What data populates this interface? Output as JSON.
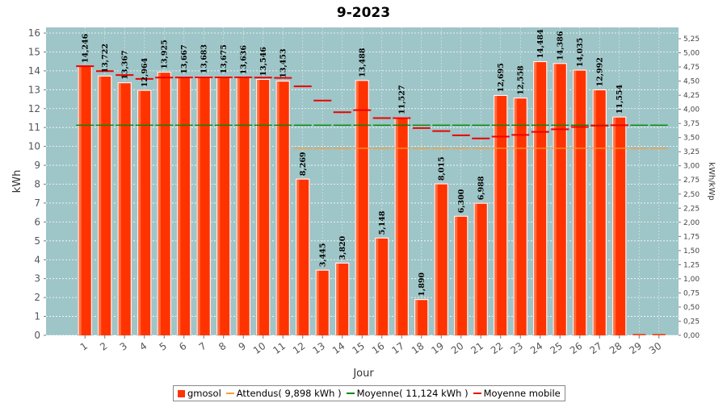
{
  "chart_data": {
    "type": "bar",
    "title": "9-2023",
    "xlabel": "Jour",
    "ylabel": "kWh",
    "ylabel_right": "kWh/kWp",
    "ylim": [
      0,
      16.3
    ],
    "ylim_right": [
      0,
      5.45
    ],
    "y_ticks": [
      0,
      1,
      2,
      3,
      4,
      5,
      6,
      7,
      8,
      9,
      10,
      11,
      12,
      13,
      14,
      15,
      16
    ],
    "y_ticks_right": [
      "0,00",
      "0,25",
      "0,50",
      "0,75",
      "1,00",
      "1,25",
      "1,50",
      "1,75",
      "2,00",
      "2,25",
      "2,50",
      "2,75",
      "3,00",
      "3,25",
      "3,50",
      "3,75",
      "4,00",
      "4,25",
      "4,50",
      "4,75",
      "5,00",
      "5,25"
    ],
    "categories": [
      "1",
      "2",
      "3",
      "4",
      "5",
      "6",
      "7",
      "8",
      "9",
      "10",
      "11",
      "12",
      "13",
      "14",
      "15",
      "16",
      "17",
      "18",
      "19",
      "20",
      "21",
      "22",
      "23",
      "24",
      "25",
      "26",
      "27",
      "28",
      "29",
      "30"
    ],
    "series": [
      {
        "name": "gmosol",
        "values": [
          14.246,
          13.722,
          13.367,
          12.964,
          13.925,
          13.667,
          13.683,
          13.675,
          13.636,
          13.546,
          13.453,
          8.269,
          3.445,
          3.82,
          13.488,
          5.148,
          11.527,
          1.89,
          8.015,
          6.3,
          6.988,
          12.695,
          12.558,
          14.484,
          14.386,
          14.035,
          12.992,
          11.554,
          0,
          0
        ],
        "labels": [
          "14,246",
          "13,722",
          "13,367",
          "12,964",
          "13,925",
          "13,667",
          "13,683",
          "13,675",
          "13,636",
          "13,546",
          "13,453",
          "8,269",
          "3,445",
          "3,820",
          "13,488",
          "5,148",
          "11,527",
          "1,890",
          "8,015",
          "6,300",
          "6,988",
          "12,695",
          "12,558",
          "14,484",
          "14,386",
          "14,035",
          "12,992",
          "11,554",
          "",
          ""
        ]
      },
      {
        "name": "Attendus( 9,898 kWh )",
        "values": [
          null,
          null,
          null,
          null,
          null,
          null,
          null,
          null,
          null,
          null,
          null,
          9.898,
          9.898,
          9.898,
          9.898,
          9.898,
          9.898,
          9.898,
          9.898,
          9.898,
          9.898,
          9.898,
          9.898,
          9.898,
          9.898,
          9.898,
          9.898,
          9.898,
          9.898,
          9.898
        ]
      },
      {
        "name": "Moyenne( 11,124 kWh )",
        "values": [
          11.124,
          11.124,
          11.124,
          11.124,
          11.124,
          11.124,
          11.124,
          11.124,
          11.124,
          11.124,
          11.124,
          11.124,
          11.124,
          11.124,
          11.124,
          11.124,
          11.124,
          11.124,
          11.124,
          11.124,
          11.124,
          11.124,
          11.124,
          11.124,
          11.124,
          11.124,
          11.124,
          11.124,
          11.124,
          11.124
        ]
      },
      {
        "name": "Moyenne mobile",
        "values": [
          14.246,
          13.984,
          13.778,
          13.575,
          13.645,
          13.649,
          13.654,
          13.657,
          13.655,
          13.644,
          13.626,
          13.18,
          12.43,
          11.81,
          11.92,
          11.5,
          11.5,
          10.97,
          10.81,
          10.59,
          10.42,
          10.52,
          10.61,
          10.77,
          10.91,
          11.03,
          11.1,
          11.12,
          null,
          null
        ]
      }
    ],
    "colors": {
      "bar": "#ff3300",
      "plot_bg": "#9ec5c7",
      "attendus": "#ff9933",
      "moyenne": "#008800",
      "mobile": "#ee0000"
    },
    "legend": "bottom",
    "grid": true
  }
}
